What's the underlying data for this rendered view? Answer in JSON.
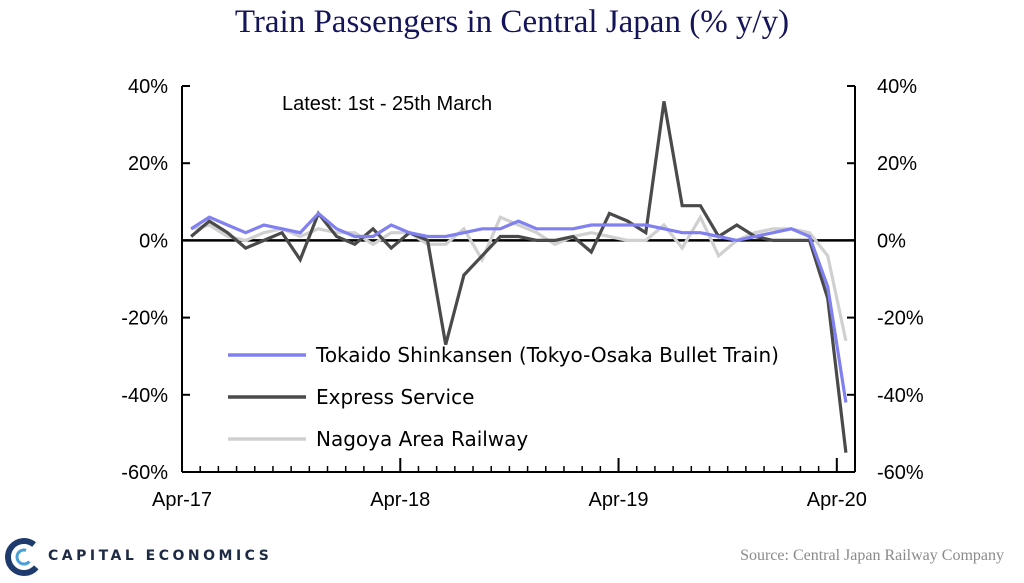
{
  "title": "Train Passengers in Central Japan (% y/y)",
  "annotation": "Latest:  1st  -  25th  March",
  "source": "Source: Central Japan Railway Company",
  "brand": "CAPITAL ECONOMICS",
  "colors": {
    "shinkansen": "#8080f0",
    "express": "#4a4a4a",
    "nagoya": "#d0d0d0",
    "title": "#14145a"
  },
  "chart_data": {
    "type": "line",
    "ylim": [
      -60,
      40
    ],
    "yticks": [
      40,
      20,
      0,
      -20,
      -40,
      -60
    ],
    "ytick_labels": [
      "40%",
      "20%",
      "0%",
      "-20%",
      "-40%",
      "-60%"
    ],
    "x_tick_labels": [
      "Apr-17",
      "Apr-18",
      "Apr-19",
      "Apr-20"
    ],
    "x_tick_index": [
      0,
      12,
      24,
      36
    ],
    "x_count": 37,
    "legend_position": "lower-center",
    "series": [
      {
        "name": "Tokaido Shinkansen (Tokyo-Osaka Bullet Train)",
        "key": "shinkansen",
        "values": [
          3,
          6,
          4,
          2,
          4,
          3,
          2,
          7,
          3,
          1,
          1,
          4,
          2,
          1,
          1,
          2,
          3,
          3,
          5,
          3,
          3,
          3,
          4,
          4,
          4,
          4,
          3,
          2,
          2,
          1,
          0,
          1,
          2,
          3,
          1,
          -12,
          -42
        ]
      },
      {
        "name": "Express Service",
        "key": "express",
        "values": [
          1,
          5,
          2,
          -2,
          0,
          2,
          -5,
          7,
          1,
          -1,
          3,
          -2,
          2,
          0,
          -27,
          -9,
          -4,
          1,
          1,
          0,
          0,
          1,
          -3,
          7,
          5,
          2,
          36,
          9,
          9,
          1,
          4,
          1,
          0,
          0,
          0,
          -15,
          -55
        ]
      },
      {
        "name": "Nagoya Area Railway",
        "key": "nagoya",
        "values": [
          3,
          4,
          1,
          0,
          2,
          3,
          1,
          3,
          2,
          2,
          -1,
          2,
          2,
          -1,
          -1,
          3,
          -5,
          6,
          4,
          2,
          -1,
          1,
          2,
          1,
          0,
          0,
          4,
          -2,
          6,
          -4,
          0,
          2,
          3,
          3,
          2,
          -4,
          -26
        ]
      }
    ]
  }
}
